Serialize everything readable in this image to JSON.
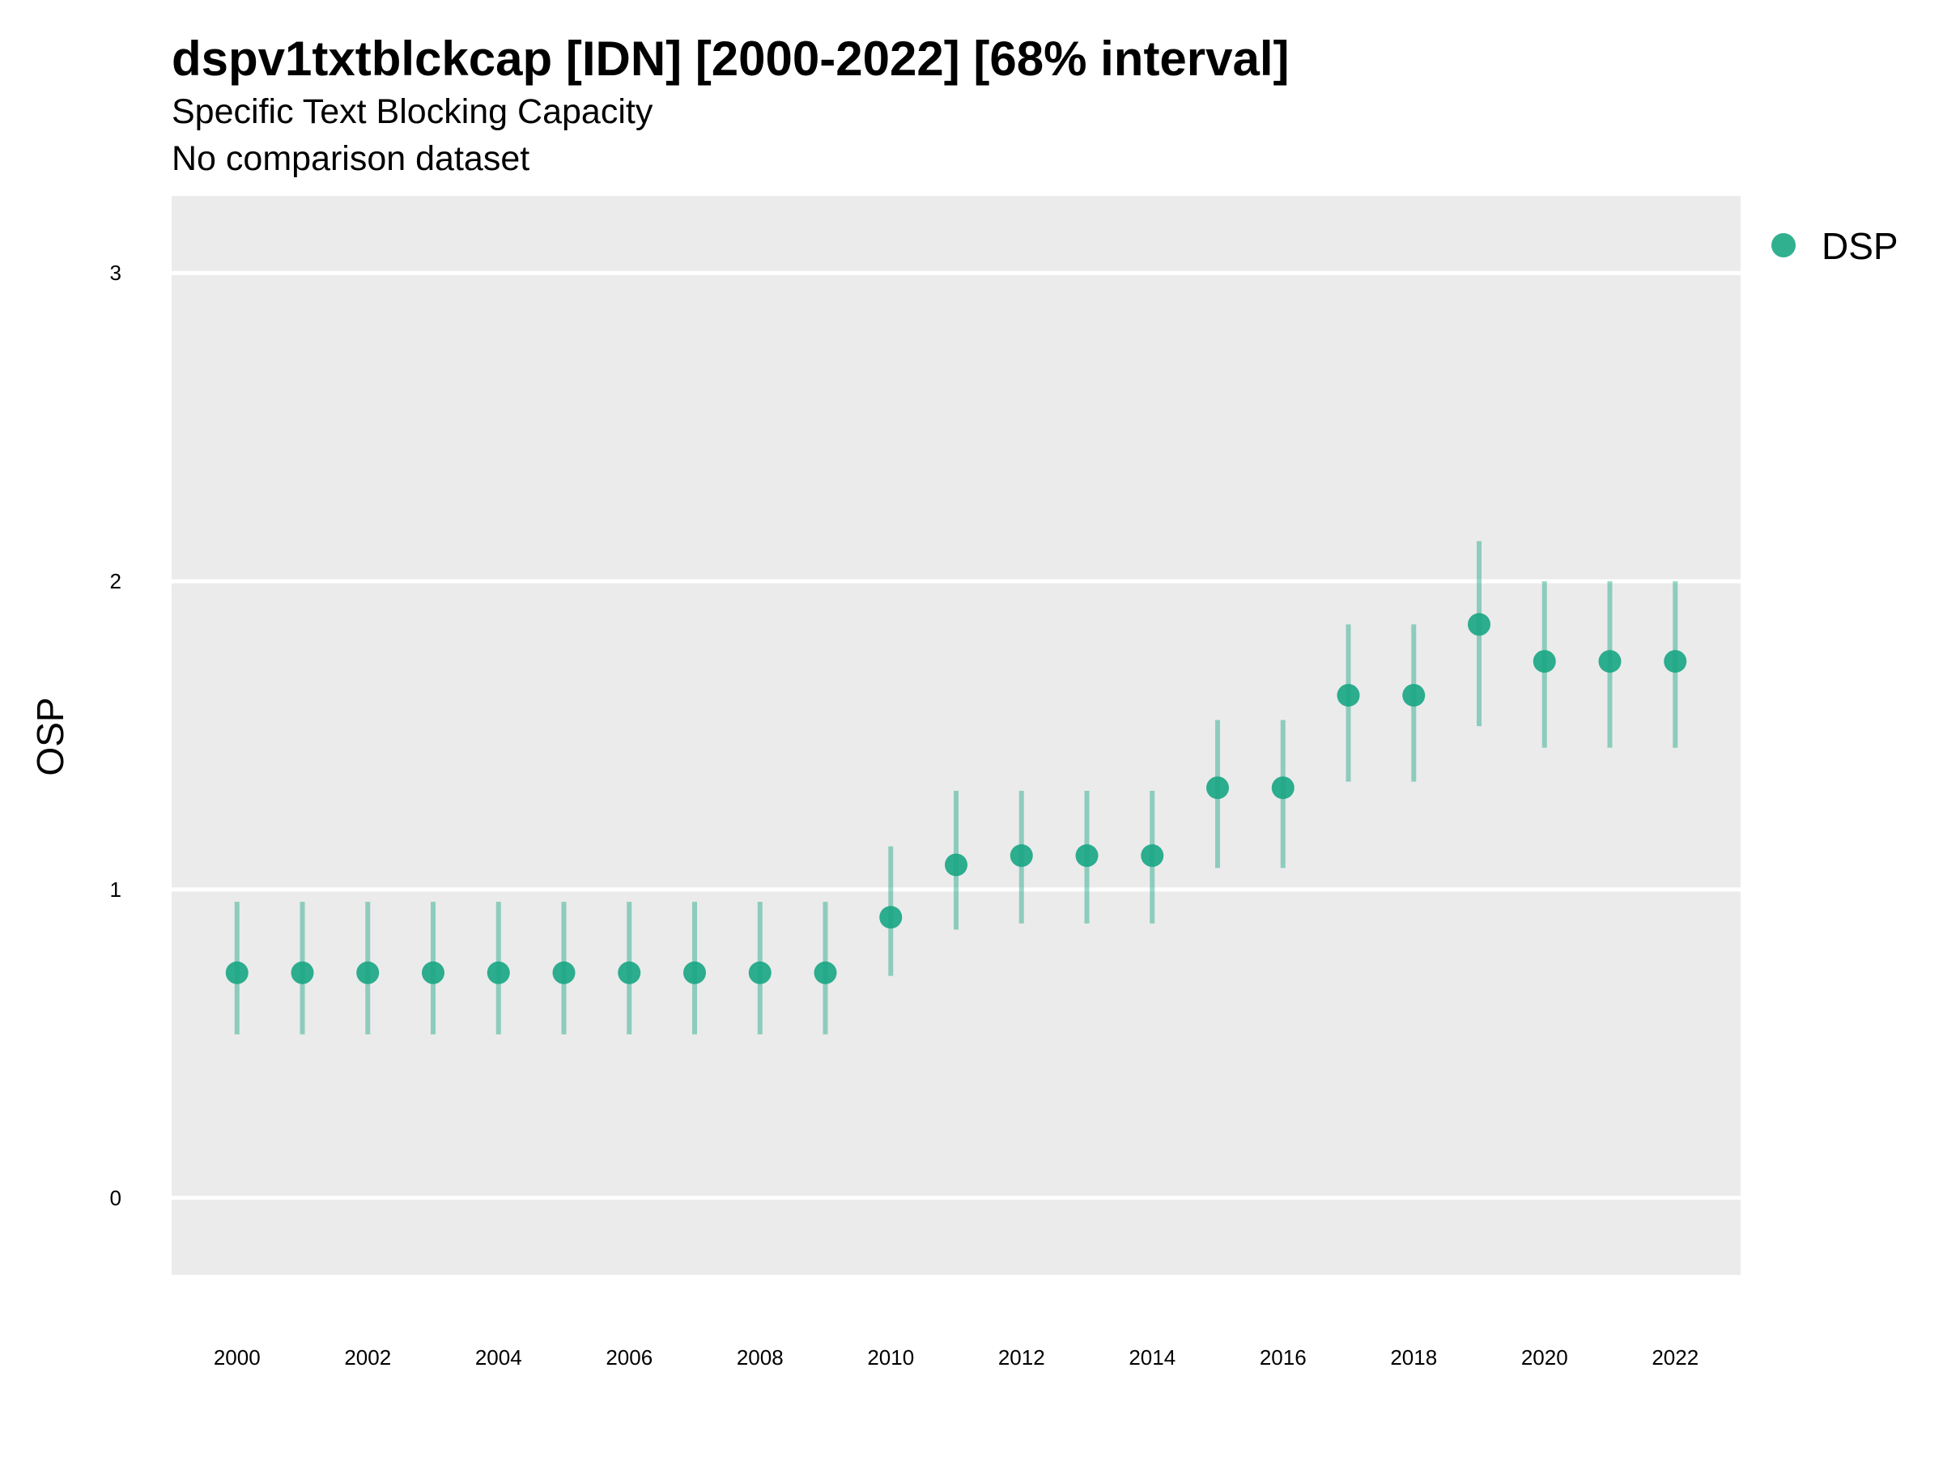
{
  "header": {
    "title": "dspv1txtblckcap [IDN] [2000-2022] [68% interval]",
    "subtitle": "Specific Text Blocking Capacity",
    "subtitle2": "No comparison dataset"
  },
  "chart_data": {
    "type": "scatter",
    "title": "dspv1txtblckcap [IDN] [2000-2022] [68% interval]",
    "subtitle": "Specific Text Blocking Capacity",
    "xlabel": "",
    "ylabel": "OSP",
    "xlim": [
      1999,
      2023
    ],
    "ylim": [
      -0.25,
      3.25
    ],
    "x_ticks": [
      2000,
      2002,
      2004,
      2006,
      2008,
      2010,
      2012,
      2014,
      2016,
      2018,
      2020,
      2022
    ],
    "y_ticks": [
      0,
      1,
      2,
      3
    ],
    "grid": true,
    "legend_position": "top-right",
    "series": [
      {
        "name": "DSP",
        "color": "#1ba784",
        "x": [
          2000,
          2001,
          2002,
          2003,
          2004,
          2005,
          2006,
          2007,
          2008,
          2009,
          2010,
          2011,
          2012,
          2013,
          2014,
          2015,
          2016,
          2017,
          2018,
          2019,
          2020,
          2021,
          2022
        ],
        "y": [
          0.73,
          0.73,
          0.73,
          0.73,
          0.73,
          0.73,
          0.73,
          0.73,
          0.73,
          0.73,
          0.91,
          1.08,
          1.11,
          1.11,
          1.11,
          1.33,
          1.33,
          1.63,
          1.63,
          1.86,
          1.74,
          1.74,
          1.74
        ],
        "lower": [
          0.53,
          0.53,
          0.53,
          0.53,
          0.53,
          0.53,
          0.53,
          0.53,
          0.53,
          0.53,
          0.72,
          0.87,
          0.89,
          0.89,
          0.89,
          1.07,
          1.07,
          1.35,
          1.35,
          1.53,
          1.46,
          1.46,
          1.46
        ],
        "upper": [
          0.96,
          0.96,
          0.96,
          0.96,
          0.96,
          0.96,
          0.96,
          0.96,
          0.96,
          0.96,
          1.14,
          1.32,
          1.32,
          1.32,
          1.32,
          1.55,
          1.55,
          1.86,
          1.86,
          2.13,
          2.0,
          2.0,
          2.0
        ]
      }
    ]
  }
}
